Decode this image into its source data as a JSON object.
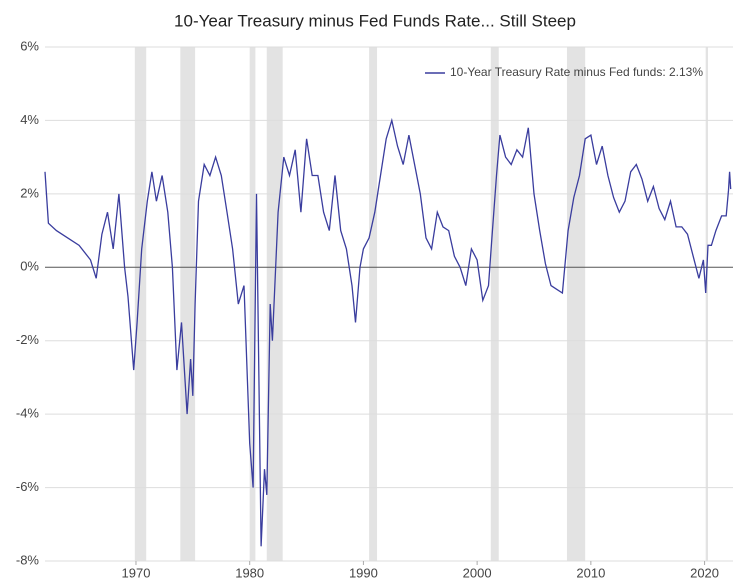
{
  "chart_data": {
    "type": "line",
    "title": "10-Year Treasury minus Fed Funds Rate... Still Steep",
    "x": [
      1962.0,
      1962.3,
      1963.0,
      1964.0,
      1965.0,
      1966.0,
      1966.5,
      1967.0,
      1967.5,
      1968.0,
      1968.5,
      1969.0,
      1969.3,
      1969.8,
      1970.1,
      1970.5,
      1971.0,
      1971.4,
      1971.8,
      1972.3,
      1972.8,
      1973.2,
      1973.6,
      1974.0,
      1974.5,
      1974.8,
      1975.0,
      1975.2,
      1975.5,
      1976.0,
      1976.5,
      1977.0,
      1977.5,
      1978.0,
      1978.5,
      1979.0,
      1979.5,
      1980.0,
      1980.3,
      1980.6,
      1981.0,
      1981.3,
      1981.5,
      1981.8,
      1982.0,
      1982.5,
      1983.0,
      1983.5,
      1984.0,
      1984.5,
      1985.0,
      1985.5,
      1986.0,
      1986.5,
      1987.0,
      1987.5,
      1988.0,
      1988.5,
      1989.0,
      1989.3,
      1989.7,
      1990.0,
      1990.5,
      1991.0,
      1991.5,
      1992.0,
      1992.5,
      1993.0,
      1993.5,
      1994.0,
      1994.5,
      1995.0,
      1995.5,
      1996.0,
      1996.5,
      1997.0,
      1997.5,
      1998.0,
      1998.5,
      1999.0,
      1999.5,
      2000.0,
      2000.5,
      2001.0,
      2001.3,
      2001.7,
      2002.0,
      2002.5,
      2003.0,
      2003.5,
      2004.0,
      2004.5,
      2005.0,
      2005.5,
      2006.0,
      2006.5,
      2007.0,
      2007.5,
      2008.0,
      2008.5,
      2009.0,
      2009.5,
      2010.0,
      2010.5,
      2011.0,
      2011.5,
      2012.0,
      2012.5,
      2013.0,
      2013.5,
      2014.0,
      2014.5,
      2015.0,
      2015.5,
      2016.0,
      2016.5,
      2017.0,
      2017.5,
      2018.0,
      2018.5,
      2019.0,
      2019.5,
      2019.9,
      2020.1,
      2020.3,
      2020.6,
      2021.0,
      2021.5,
      2021.9,
      2022.1,
      2022.2,
      2022.3
    ],
    "series": [
      {
        "name": "10-Year Treasury Rate minus Fed funds: 2.13%",
        "color": "#3a3d9e",
        "values": [
          2.6,
          1.2,
          1.0,
          0.8,
          0.6,
          0.2,
          -0.3,
          0.9,
          1.5,
          0.5,
          2.0,
          0.0,
          -0.8,
          -2.8,
          -1.5,
          0.5,
          1.8,
          2.6,
          1.8,
          2.5,
          1.5,
          0.0,
          -2.8,
          -1.5,
          -4.0,
          -2.5,
          -3.5,
          -1.0,
          1.8,
          2.8,
          2.5,
          3.0,
          2.5,
          1.5,
          0.5,
          -1.0,
          -0.5,
          -4.8,
          -6.0,
          2.0,
          -7.6,
          -5.5,
          -6.2,
          -1.0,
          -2.0,
          1.5,
          3.0,
          2.5,
          3.2,
          1.5,
          3.5,
          2.5,
          2.5,
          1.5,
          1.0,
          2.5,
          1.0,
          0.5,
          -0.5,
          -1.5,
          0.0,
          0.5,
          0.8,
          1.5,
          2.5,
          3.5,
          4.0,
          3.3,
          2.8,
          3.6,
          2.8,
          2.0,
          0.8,
          0.5,
          1.5,
          1.1,
          1.0,
          0.3,
          0.0,
          -0.5,
          0.5,
          0.2,
          -0.9,
          -0.5,
          0.8,
          2.5,
          3.6,
          3.0,
          2.8,
          3.2,
          3.0,
          3.8,
          2.0,
          1.0,
          0.1,
          -0.5,
          -0.6,
          -0.7,
          1.0,
          1.9,
          2.5,
          3.5,
          3.6,
          2.8,
          3.3,
          2.5,
          1.9,
          1.5,
          1.8,
          2.6,
          2.8,
          2.4,
          1.8,
          2.2,
          1.6,
          1.3,
          1.8,
          1.1,
          1.1,
          0.9,
          0.3,
          -0.3,
          0.2,
          -0.7,
          0.6,
          0.6,
          1.0,
          1.4,
          1.4,
          2.1,
          2.6,
          2.13
        ]
      }
    ],
    "recessions": [
      {
        "start": 1969.9,
        "end": 1970.9
      },
      {
        "start": 1973.9,
        "end": 1975.2
      },
      {
        "start": 1980.0,
        "end": 1980.5
      },
      {
        "start": 1981.5,
        "end": 1982.9
      },
      {
        "start": 1990.5,
        "end": 1991.2
      },
      {
        "start": 2001.2,
        "end": 2001.9
      },
      {
        "start": 2007.9,
        "end": 2009.5
      },
      {
        "start": 2020.1,
        "end": 2020.3
      }
    ],
    "xlim": [
      1962.0,
      2022.5
    ],
    "xticks": [
      1970,
      1980,
      1990,
      2000,
      2010,
      2020
    ],
    "ylim": [
      -8,
      6
    ],
    "yticks": [
      {
        "value": -8,
        "label": "-8%"
      },
      {
        "value": -6,
        "label": "-6%"
      },
      {
        "value": -4,
        "label": "-4%"
      },
      {
        "value": -2,
        "label": "-2%"
      },
      {
        "value": 0,
        "label": "0%"
      },
      {
        "value": 2,
        "label": "2%"
      },
      {
        "value": 4,
        "label": "4%"
      },
      {
        "value": 6,
        "label": "6%"
      }
    ],
    "grid": true,
    "legend": "top-right"
  }
}
